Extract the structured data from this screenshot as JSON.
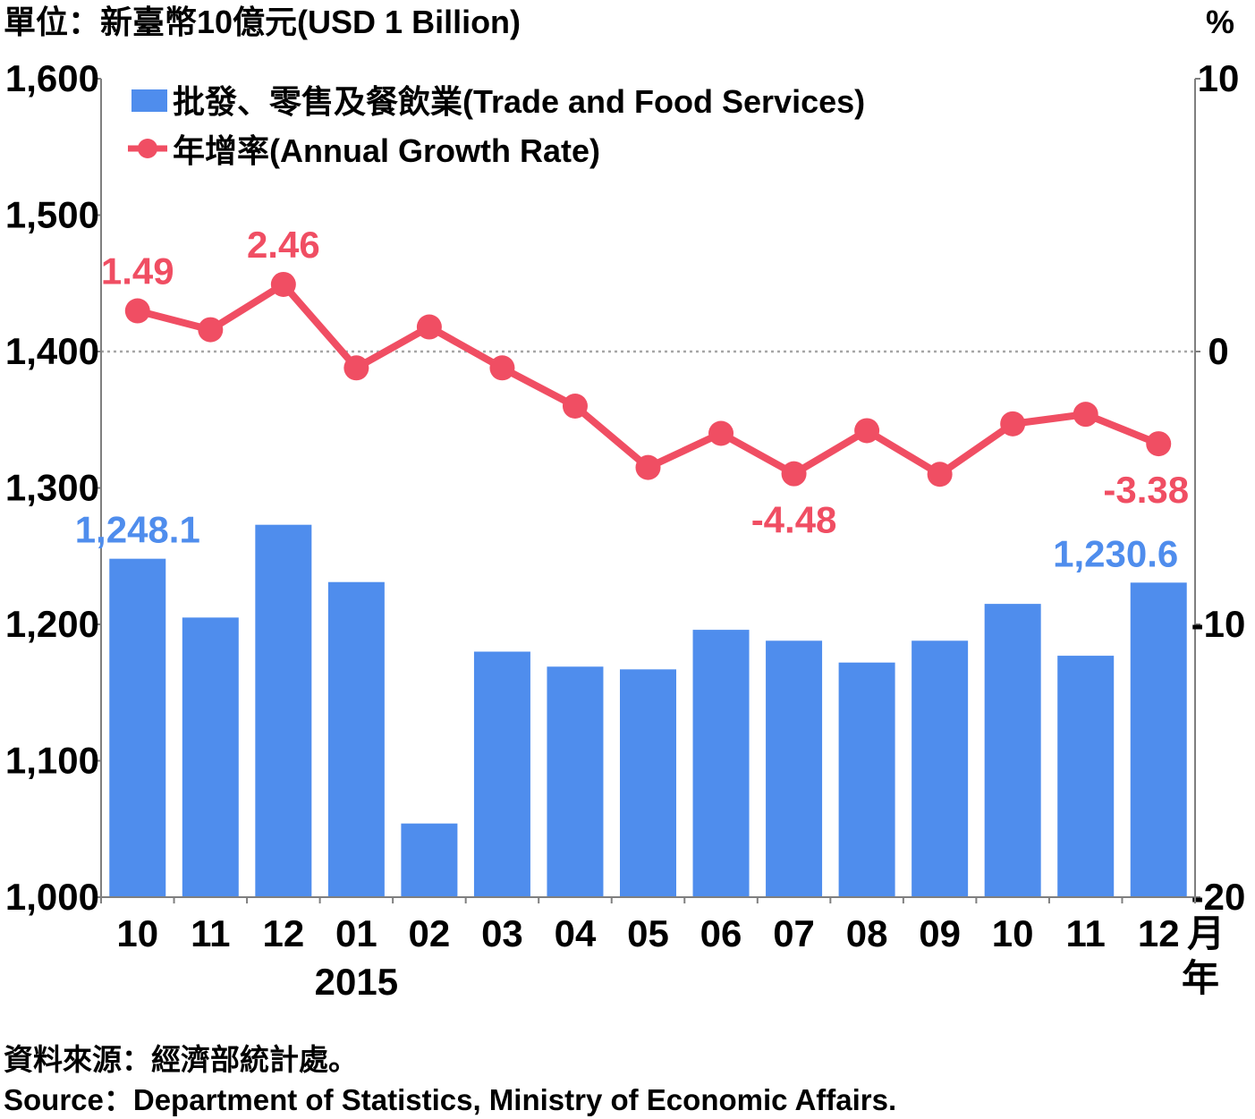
{
  "header": {
    "unit_left": "單位：新臺幣10億元(USD 1 Billion)",
    "unit_right": "%"
  },
  "footer": {
    "source_zh": "資料來源：經濟部統計處。",
    "source_en": "Source：Department of Statistics, Ministry of Economic Affairs."
  },
  "colors": {
    "bar": "#4f8ded",
    "line": "#f04e63",
    "axis": "#7f7f7f"
  },
  "chart_data": {
    "type": "bar",
    "categories": [
      "10",
      "11",
      "12",
      "01",
      "02",
      "03",
      "04",
      "05",
      "06",
      "07",
      "08",
      "09",
      "10",
      "11",
      "12"
    ],
    "x_unit_month": "月",
    "x_unit_year": "年",
    "year_label": "2015",
    "year_label_category_index": 3,
    "y_left": {
      "ylim": [
        1000,
        1600
      ],
      "ticks": [
        "1,000",
        "1,100",
        "1,200",
        "1,300",
        "1,400",
        "1,500",
        "1,600"
      ],
      "tick_values": [
        1000,
        1100,
        1200,
        1300,
        1400,
        1500,
        1600
      ]
    },
    "y_right": {
      "ylim": [
        -20,
        10
      ],
      "ticks": [
        "-20",
        "-10",
        "0",
        "10"
      ],
      "tick_values": [
        -20,
        -10,
        0,
        10
      ]
    },
    "reference_line": 0,
    "series": [
      {
        "name": "批發、零售及餐飲業(Trade and Food Services)",
        "type": "bar",
        "axis": "left",
        "values": [
          1248.1,
          1205,
          1273,
          1231,
          1054,
          1180,
          1169,
          1167,
          1196,
          1188,
          1172,
          1188,
          1215,
          1177,
          1230.6
        ]
      },
      {
        "name": "年增率(Annual Growth Rate)",
        "type": "line",
        "axis": "right",
        "values": [
          1.49,
          0.8,
          2.46,
          -0.6,
          0.9,
          -0.6,
          -2.0,
          -4.25,
          -3.0,
          -4.48,
          -2.9,
          -4.5,
          -2.65,
          -2.3,
          -3.38
        ]
      }
    ],
    "data_labels": [
      {
        "series": 0,
        "index": 0,
        "text": "1,248.1"
      },
      {
        "series": 0,
        "index": 14,
        "text": "1,230.6"
      },
      {
        "series": 1,
        "index": 0,
        "text": "1.49"
      },
      {
        "series": 1,
        "index": 2,
        "text": "2.46"
      },
      {
        "series": 1,
        "index": 9,
        "text": "-4.48"
      },
      {
        "series": 1,
        "index": 14,
        "text": "-3.38"
      }
    ],
    "legend": "top-left"
  }
}
